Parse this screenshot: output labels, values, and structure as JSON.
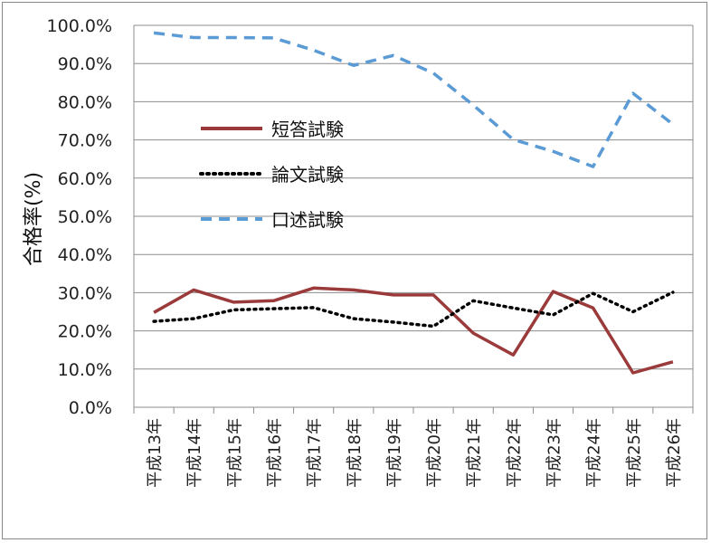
{
  "chart_data": {
    "type": "line",
    "title": "",
    "xlabel": "",
    "ylabel": "合格率(%)",
    "categories": [
      "平成13年",
      "平成14年",
      "平成15年",
      "平成16年",
      "平成17年",
      "平成18年",
      "平成19年",
      "平成20年",
      "平成21年",
      "平成22年",
      "平成23年",
      "平成24年",
      "平成25年",
      "平成26年"
    ],
    "ylim": [
      0,
      100
    ],
    "yticks": [
      "0.0%",
      "10.0%",
      "20.0%",
      "30.0%",
      "40.0%",
      "50.0%",
      "60.0%",
      "70.0%",
      "80.0%",
      "90.0%",
      "100.0%"
    ],
    "grid": "horizontal",
    "legend_position": "top-left",
    "series": [
      {
        "name": "短答試験",
        "color": "#9b3a3a",
        "style": "solid",
        "values": [
          24.8,
          30.7,
          27.5,
          27.9,
          31.2,
          30.7,
          29.4,
          29.4,
          19.4,
          13.7,
          30.3,
          26.0,
          9.0,
          11.9
        ]
      },
      {
        "name": "論文試験",
        "color": "#000000",
        "style": "dotted",
        "values": [
          22.5,
          23.2,
          25.5,
          25.8,
          26.1,
          23.2,
          22.3,
          21.2,
          27.9,
          26.0,
          24.2,
          29.8,
          25.0,
          30.1
        ]
      },
      {
        "name": "口述試験",
        "color": "#5b9bd5",
        "style": "dashed",
        "values": [
          98.0,
          96.8,
          96.8,
          96.7,
          93.5,
          89.5,
          92.1,
          87.5,
          79.1,
          70.1,
          67.0,
          63.0,
          82.2,
          74.1
        ]
      }
    ]
  }
}
